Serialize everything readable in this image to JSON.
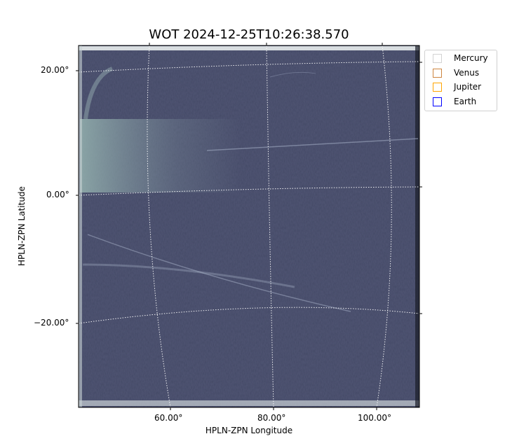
{
  "chart_data": {
    "type": "image",
    "title": "WOT 2024-12-25T10:26:38.570",
    "xlabel": "HPLN-ZPN Longitude",
    "ylabel": "HPLN-ZPN Latitude",
    "xticks": [
      "60.00°",
      "80.00°",
      "100.00°"
    ],
    "yticks": [
      "20.00°",
      "0.00°",
      "−20.00°"
    ],
    "grid": true,
    "colormap": "bone-like gray-blue",
    "legend": {
      "placement": "outside-top-right",
      "entries": [
        {
          "label": "Mercury",
          "color": "#d3d3d3"
        },
        {
          "label": "Venus",
          "color": "#cd853f"
        },
        {
          "label": "Jupiter",
          "color": "#ffa500"
        },
        {
          "label": "Earth",
          "color": "#0000ff"
        }
      ]
    }
  }
}
